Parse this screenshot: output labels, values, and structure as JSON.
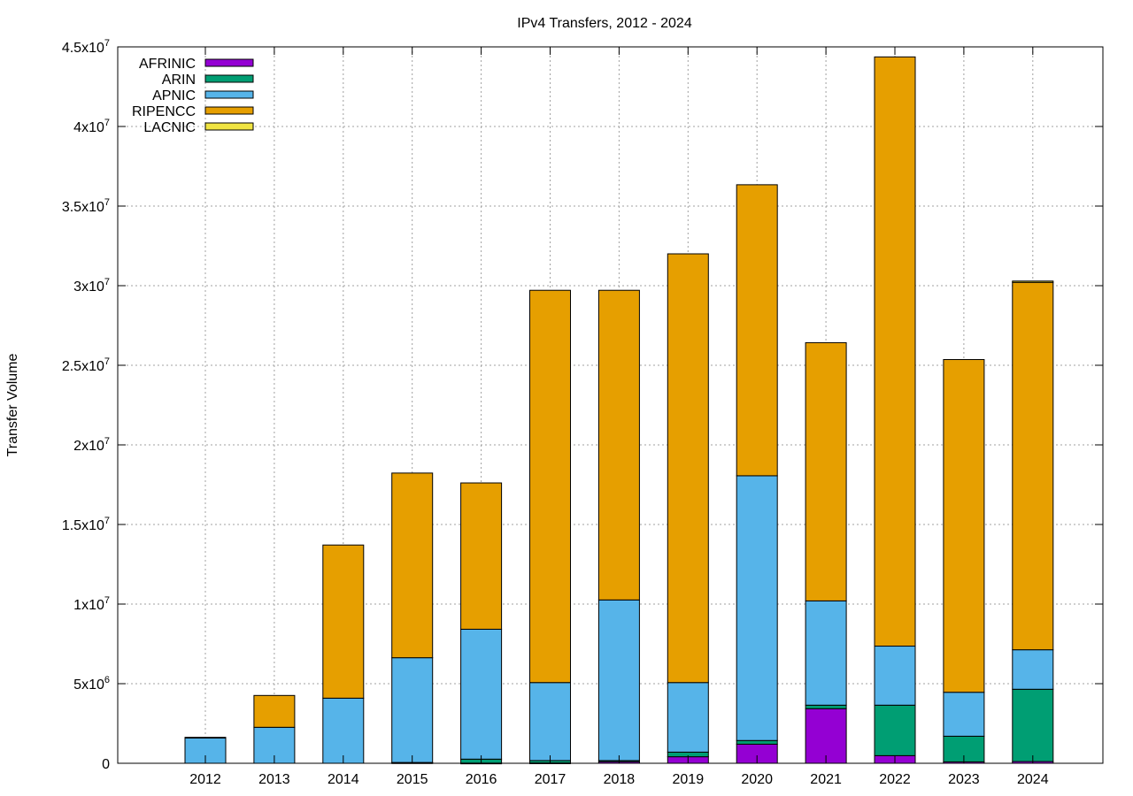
{
  "chart_data": {
    "type": "bar",
    "stacked": true,
    "title": "IPv4 Transfers, 2012 - 2024",
    "xlabel": "",
    "ylabel": "Transfer Volume",
    "ylim": [
      0,
      45000000
    ],
    "grid": true,
    "legend_position": "top-left",
    "categories": [
      "2012",
      "2013",
      "2014",
      "2015",
      "2016",
      "2017",
      "2018",
      "2019",
      "2020",
      "2021",
      "2022",
      "2023",
      "2024"
    ],
    "y_ticks": [
      {
        "value": 0,
        "label": "0"
      },
      {
        "value": 5000000,
        "label": "5x10^6"
      },
      {
        "value": 10000000,
        "label": "1x10^7"
      },
      {
        "value": 15000000,
        "label": "1.5x10^7"
      },
      {
        "value": 20000000,
        "label": "2x10^7"
      },
      {
        "value": 25000000,
        "label": "2.5x10^7"
      },
      {
        "value": 30000000,
        "label": "3x10^7"
      },
      {
        "value": 35000000,
        "label": "3.5x10^7"
      },
      {
        "value": 40000000,
        "label": "4x10^7"
      },
      {
        "value": 45000000,
        "label": "4.5x10^7"
      }
    ],
    "series": [
      {
        "name": "AFRINIC",
        "color": "#9400d3",
        "values": [
          0,
          0,
          0,
          30000,
          10000,
          20000,
          100000,
          410000,
          1200000,
          3430000,
          480000,
          90000,
          110000
        ]
      },
      {
        "name": "ARIN",
        "color": "#009e73",
        "values": [
          0,
          0,
          0,
          20000,
          250000,
          150000,
          70000,
          290000,
          230000,
          220000,
          3170000,
          1610000,
          4540000
        ]
      },
      {
        "name": "APNIC",
        "color": "#56b4e9",
        "values": [
          1600000,
          2260000,
          4090000,
          6580000,
          8160000,
          4900000,
          10090000,
          4370000,
          16630000,
          6550000,
          3710000,
          2760000,
          2480000
        ]
      },
      {
        "name": "RIPENCC",
        "color": "#e69f00",
        "values": [
          30000,
          2000000,
          9620000,
          11600000,
          9190000,
          24640000,
          19450000,
          26930000,
          18280000,
          16220000,
          37010000,
          20900000,
          23080000
        ]
      },
      {
        "name": "LACNIC",
        "color": "#f0e442",
        "values": [
          0,
          0,
          0,
          0,
          0,
          0,
          0,
          0,
          0,
          0,
          0,
          0,
          80000
        ]
      }
    ]
  }
}
